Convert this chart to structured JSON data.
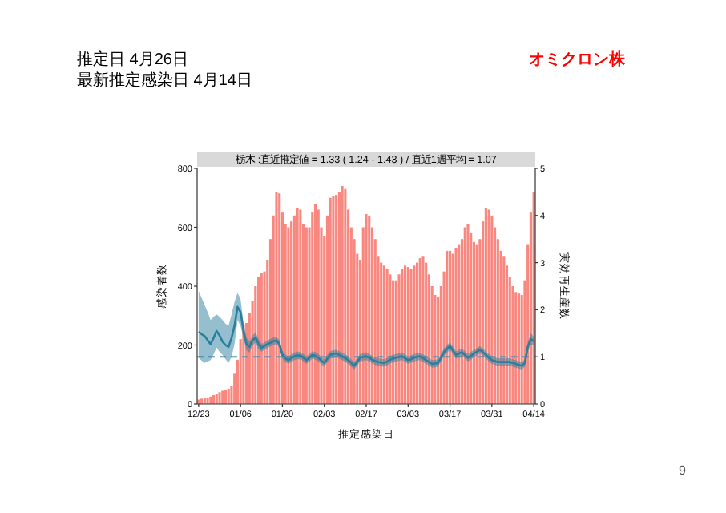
{
  "chart_data": {
    "type": "bar",
    "title": "栃木 :直近推定値 = 1.33 ( 1.24 - 1.43 ) / 直近1週平均 = 1.07",
    "annotations": [
      "推定日 4月26日",
      "最新推定感染日 4月14日",
      "オミクロン株",
      "9"
    ],
    "xlabel": "推定感染日",
    "ylabel": "感染者数",
    "y2label": "実効再生産数",
    "categories": [
      "12/23",
      null,
      null,
      null,
      null,
      null,
      null,
      null,
      null,
      null,
      null,
      null,
      null,
      null,
      "01/06",
      null,
      null,
      null,
      null,
      null,
      null,
      null,
      null,
      null,
      null,
      null,
      null,
      null,
      "01/20",
      null,
      null,
      null,
      null,
      null,
      null,
      null,
      null,
      null,
      null,
      null,
      null,
      null,
      "02/03",
      null,
      null,
      null,
      null,
      null,
      null,
      null,
      null,
      null,
      null,
      null,
      null,
      null,
      "02/17",
      null,
      null,
      null,
      null,
      null,
      null,
      null,
      null,
      null,
      null,
      null,
      null,
      null,
      "03/03",
      null,
      null,
      null,
      null,
      null,
      null,
      null,
      null,
      null,
      null,
      null,
      null,
      null,
      "03/17",
      null,
      null,
      null,
      null,
      null,
      null,
      null,
      null,
      null,
      null,
      null,
      null,
      null,
      "03/31",
      null,
      null,
      null,
      null,
      null,
      null,
      null,
      null,
      null,
      null,
      null,
      null,
      null,
      "04/14"
    ],
    "ylim": [
      0,
      800
    ],
    "yticks": [
      0,
      200,
      400,
      600,
      800
    ],
    "y2lim": [
      0,
      5
    ],
    "y2ticks": [
      0,
      1,
      2,
      3,
      4,
      5
    ],
    "grid": false,
    "series": [
      {
        "color": "#f8877f",
        "values": [
          15,
          18,
          20,
          22,
          25,
          30,
          35,
          40,
          45,
          48,
          52,
          60,
          105,
          150,
          220,
          270,
          275,
          310,
          350,
          400,
          430,
          445,
          450,
          490,
          560,
          640,
          720,
          715,
          650,
          610,
          600,
          620,
          640,
          665,
          660,
          610,
          600,
          600,
          650,
          680,
          660,
          600,
          570,
          640,
          700,
          705,
          710,
          720,
          740,
          730,
          660,
          600,
          560,
          510,
          490,
          600,
          645,
          640,
          600,
          560,
          500,
          480,
          470,
          460,
          440,
          420,
          420,
          440,
          460,
          470,
          465,
          460,
          470,
          480,
          495,
          500,
          480,
          440,
          400,
          370,
          365,
          400,
          450,
          520,
          520,
          510,
          530,
          540,
          560,
          600,
          610,
          580,
          550,
          540,
          560,
          620,
          665,
          660,
          640,
          600,
          560,
          520,
          500,
          470,
          430,
          400,
          380,
          375,
          370,
          420,
          540,
          650,
          720
        ]
      },
      {
        "type": "line",
        "axis": "y2",
        "color": "#2b7f9e",
        "values": [
          1.53,
          1.48,
          1.44,
          1.35,
          1.27,
          1.4,
          1.55,
          1.45,
          1.32,
          1.25,
          1.21,
          1.4,
          1.66,
          2.06,
          1.95,
          1.55,
          1.27,
          1.21,
          1.35,
          1.41,
          1.27,
          1.19,
          1.23,
          1.27,
          1.3,
          1.33,
          1.35,
          1.27,
          1.04,
          0.97,
          0.93,
          0.97,
          1.01,
          1.03,
          1.03,
          0.98,
          0.93,
          0.98,
          1.04,
          1.02,
          0.98,
          0.92,
          0.87,
          0.96,
          1.04,
          1.06,
          1.07,
          1.04,
          1.01,
          0.97,
          0.93,
          0.87,
          0.81,
          0.9,
          0.98,
          1.0,
          1.01,
          0.98,
          0.94,
          0.91,
          0.89,
          0.88,
          0.87,
          0.9,
          0.94,
          0.96,
          0.98,
          1.0,
          1.01,
          0.97,
          0.93,
          0.95,
          0.98,
          1.0,
          1.01,
          0.97,
          0.93,
          0.89,
          0.85,
          0.86,
          0.87,
          0.98,
          1.1,
          1.17,
          1.23,
          1.13,
          1.04,
          1.07,
          1.1,
          1.04,
          0.98,
          1.02,
          1.07,
          1.11,
          1.15,
          1.1,
          1.04,
          0.98,
          0.93,
          0.91,
          0.89,
          0.89,
          0.89,
          0.89,
          0.89,
          0.87,
          0.85,
          0.83,
          0.81,
          0.87,
          1.21,
          1.38,
          1.33
        ],
        "lower": [
          0.98,
          0.92,
          0.87,
          0.9,
          0.93,
          1.05,
          1.2,
          1.1,
          1.04,
          0.95,
          0.87,
          1.0,
          1.27,
          1.78,
          1.66,
          1.38,
          1.14,
          1.09,
          1.24,
          1.3,
          1.16,
          1.11,
          1.15,
          1.19,
          1.22,
          1.25,
          1.27,
          1.19,
          0.96,
          0.89,
          0.85,
          0.89,
          0.93,
          0.95,
          0.95,
          0.9,
          0.85,
          0.9,
          0.96,
          0.94,
          0.9,
          0.84,
          0.79,
          0.88,
          0.96,
          0.98,
          0.99,
          0.96,
          0.93,
          0.89,
          0.85,
          0.79,
          0.73,
          0.82,
          0.9,
          0.92,
          0.93,
          0.9,
          0.86,
          0.83,
          0.81,
          0.8,
          0.79,
          0.82,
          0.86,
          0.88,
          0.9,
          0.92,
          0.93,
          0.89,
          0.85,
          0.87,
          0.9,
          0.92,
          0.93,
          0.89,
          0.85,
          0.81,
          0.77,
          0.78,
          0.79,
          0.9,
          1.02,
          1.09,
          1.15,
          1.05,
          0.96,
          0.99,
          1.02,
          0.96,
          0.9,
          0.94,
          0.99,
          1.03,
          1.07,
          1.02,
          0.96,
          0.9,
          0.85,
          0.83,
          0.81,
          0.81,
          0.81,
          0.81,
          0.81,
          0.79,
          0.77,
          0.75,
          0.73,
          0.79,
          1.11,
          1.26,
          1.24
        ],
        "upper": [
          2.4,
          2.25,
          2.1,
          1.95,
          1.78,
          1.85,
          1.9,
          1.85,
          1.78,
          1.7,
          1.66,
          1.9,
          2.17,
          2.36,
          2.23,
          1.72,
          1.4,
          1.33,
          1.46,
          1.52,
          1.38,
          1.27,
          1.31,
          1.35,
          1.38,
          1.41,
          1.43,
          1.35,
          1.12,
          1.05,
          1.01,
          1.05,
          1.09,
          1.11,
          1.11,
          1.06,
          1.01,
          1.06,
          1.12,
          1.1,
          1.06,
          1.0,
          0.95,
          1.04,
          1.12,
          1.14,
          1.15,
          1.12,
          1.09,
          1.05,
          1.01,
          0.95,
          0.89,
          0.98,
          1.06,
          1.08,
          1.09,
          1.06,
          1.02,
          0.99,
          0.97,
          0.96,
          0.95,
          0.98,
          1.02,
          1.04,
          1.06,
          1.08,
          1.09,
          1.05,
          1.01,
          1.03,
          1.06,
          1.08,
          1.09,
          1.05,
          1.01,
          0.97,
          0.93,
          0.94,
          0.95,
          1.06,
          1.18,
          1.25,
          1.31,
          1.21,
          1.12,
          1.15,
          1.18,
          1.12,
          1.06,
          1.1,
          1.15,
          1.19,
          1.23,
          1.18,
          1.12,
          1.06,
          1.01,
          0.99,
          0.97,
          0.97,
          0.97,
          0.97,
          0.97,
          0.95,
          0.93,
          0.91,
          0.89,
          0.95,
          1.31,
          1.5,
          1.43
        ]
      }
    ],
    "ref_lines": [
      {
        "axis": "y2",
        "value": 1,
        "line_style": "dashed",
        "color": "#5f93ab"
      }
    ]
  }
}
